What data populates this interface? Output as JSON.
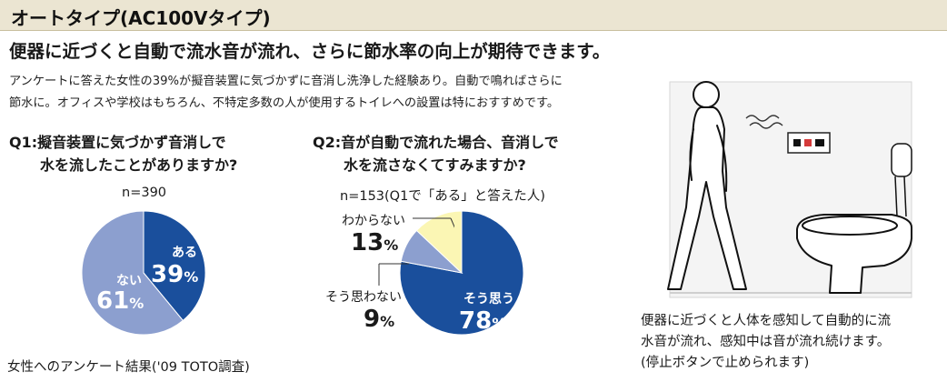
{
  "header": {
    "title": "オートタイプ(AC100Vタイプ)"
  },
  "headline": "便器に近づくと自動で流水音が流れ、さらに節水率の向上が期待できます。",
  "intro": {
    "line1": "アンケートに答えた女性の39%が擬音装置に気づかずに音消し洗浄した経験あり。自動で鳴ればさらに",
    "line2": "節水に。オフィスや学校はもちろん、不特定多数の人が使用するトイレへの設置は特におすすめです。"
  },
  "q1": {
    "line1": "Q1:擬音装置に気づかず音消しで",
    "line2": "水を流したことがありますか?",
    "n": "n=390"
  },
  "q2": {
    "line1": "Q2:音が自動で流れた場合、音消しで",
    "line2": "水を流さなくてすみますか?",
    "n": "n=153(Q1で「ある」と答えた人)"
  },
  "chart_data": [
    {
      "type": "pie",
      "title": "Q1:擬音装置に気づかず音消しで水を流したことがありますか?",
      "note": "n=390",
      "slices": [
        {
          "label": "ある",
          "value": 39,
          "display": "39",
          "color": "#1a4f9c"
        },
        {
          "label": "ない",
          "value": 61,
          "display": "61",
          "color": "#8c9fcf"
        }
      ]
    },
    {
      "type": "pie",
      "title": "Q2:音が自動で流れた場合、音消しで水を流さなくてすみますか?",
      "note": "n=153(Q1で「ある」と答えた人)",
      "slices": [
        {
          "label": "そう思う",
          "value": 78,
          "display": "78",
          "color": "#1a4f9c"
        },
        {
          "label": "そう思わない",
          "value": 9,
          "display": "9",
          "color": "#8c9fcf"
        },
        {
          "label": "わからない",
          "value": 13,
          "display": "13",
          "color": "#fbf6b4"
        }
      ]
    }
  ],
  "percent_sign": "%",
  "footnote": "女性へのアンケート結果('09 TOTO調査)",
  "illustration": {
    "sound_icon": "sound-wave-icon",
    "panel": "control-panel"
  },
  "caption": {
    "line1": "便器に近づくと人体を感知して自動的に流",
    "line2": "水音が流れ、感知中は音が流れ続けます。",
    "line3": "(停止ボタンで止められます)"
  }
}
